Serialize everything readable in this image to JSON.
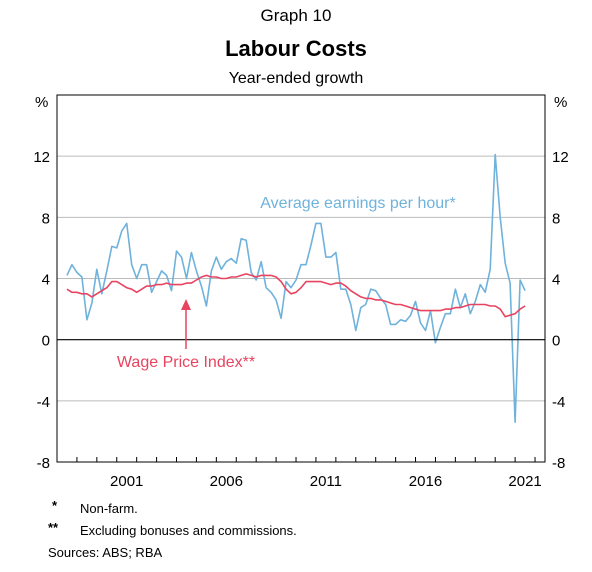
{
  "header": {
    "graph_number": "Graph 10",
    "title": "Labour Costs",
    "subtitle": "Year-ended growth"
  },
  "footnotes": [
    {
      "mark": "*",
      "text": "Non-farm."
    },
    {
      "mark": "**",
      "text": "Excluding bonuses and commissions."
    }
  ],
  "sources": "Sources: ABS; RBA",
  "colors": {
    "average_earnings": "#6FB2DC",
    "wage_price_index": "#E8445F",
    "grid": "#BBBBBB",
    "frame": "#000000"
  },
  "chart_data": {
    "type": "line",
    "title": "Labour Costs",
    "subtitle": "Year-ended growth",
    "y_unit_left": "%",
    "y_unit_right": "%",
    "ylim": [
      -8,
      16
    ],
    "yticks": [
      -8,
      -4,
      0,
      4,
      8,
      12
    ],
    "ytick_labels": [
      "-8",
      "-4",
      "0",
      "4",
      "8",
      "12"
    ],
    "xlim": [
      1998.0,
      2022.5
    ],
    "xticks": [
      2001,
      2006,
      2011,
      2016,
      2021
    ],
    "xtick_labels": [
      "2001",
      "2006",
      "2011",
      "2016",
      "2021"
    ],
    "grid": true,
    "legend": "direct labels",
    "series": [
      {
        "name": "Average earnings per hour*",
        "label_text": "Average earnings per hour*",
        "color": "#6FB2DC",
        "x": [
          1998.5,
          1998.75,
          1999.0,
          1999.25,
          1999.5,
          1999.75,
          2000.0,
          2000.25,
          2000.5,
          2000.75,
          2001.0,
          2001.25,
          2001.5,
          2001.75,
          2002.0,
          2002.25,
          2002.5,
          2002.75,
          2003.0,
          2003.25,
          2003.5,
          2003.75,
          2004.0,
          2004.25,
          2004.5,
          2004.75,
          2005.0,
          2005.25,
          2005.5,
          2005.75,
          2006.0,
          2006.25,
          2006.5,
          2006.75,
          2007.0,
          2007.25,
          2007.5,
          2007.75,
          2008.0,
          2008.25,
          2008.5,
          2008.75,
          2009.0,
          2009.25,
          2009.5,
          2009.75,
          2010.0,
          2010.25,
          2010.5,
          2010.75,
          2011.0,
          2011.25,
          2011.5,
          2011.75,
          2012.0,
          2012.25,
          2012.5,
          2012.75,
          2013.0,
          2013.25,
          2013.5,
          2013.75,
          2014.0,
          2014.25,
          2014.5,
          2014.75,
          2015.0,
          2015.25,
          2015.5,
          2015.75,
          2016.0,
          2016.25,
          2016.5,
          2016.75,
          2017.0,
          2017.25,
          2017.5,
          2017.75,
          2018.0,
          2018.25,
          2018.5,
          2018.75,
          2019.0,
          2019.25,
          2019.5,
          2019.75,
          2020.0,
          2020.25,
          2020.5,
          2020.75,
          2021.0,
          2021.25,
          2021.5
        ],
        "values": [
          4.2,
          4.9,
          4.4,
          4.1,
          1.3,
          2.4,
          4.6,
          3.0,
          4.5,
          6.1,
          6.0,
          7.1,
          7.6,
          4.9,
          4.0,
          4.9,
          4.9,
          3.1,
          3.8,
          4.5,
          4.2,
          3.2,
          5.8,
          5.4,
          4.0,
          5.7,
          4.5,
          3.5,
          2.2,
          4.5,
          5.4,
          4.6,
          5.1,
          5.3,
          5.0,
          6.6,
          6.5,
          4.4,
          3.9,
          5.1,
          3.4,
          3.1,
          2.6,
          1.4,
          3.8,
          3.4,
          3.9,
          4.9,
          4.9,
          6.2,
          7.6,
          7.6,
          5.4,
          5.4,
          5.7,
          3.3,
          3.3,
          2.3,
          0.6,
          2.1,
          2.3,
          3.3,
          3.2,
          2.7,
          2.3,
          1.0,
          1.0,
          1.3,
          1.2,
          1.6,
          2.5,
          1.1,
          0.6,
          1.9,
          -0.2,
          0.8,
          1.7,
          1.7,
          3.3,
          2.1,
          3.0,
          1.7,
          2.5,
          3.6,
          3.1,
          4.6,
          12.1,
          8.0,
          5.0,
          3.7,
          -5.4,
          3.9,
          3.2
        ]
      },
      {
        "name": "Wage Price Index**",
        "label_text": "Wage Price Index**",
        "color": "#E8445F",
        "x": [
          1998.5,
          1998.75,
          1999.0,
          1999.25,
          1999.5,
          1999.75,
          2000.0,
          2000.25,
          2000.5,
          2000.75,
          2001.0,
          2001.25,
          2001.5,
          2001.75,
          2002.0,
          2002.25,
          2002.5,
          2002.75,
          2003.0,
          2003.25,
          2003.5,
          2003.75,
          2004.0,
          2004.25,
          2004.5,
          2004.75,
          2005.0,
          2005.25,
          2005.5,
          2005.75,
          2006.0,
          2006.25,
          2006.5,
          2006.75,
          2007.0,
          2007.25,
          2007.5,
          2007.75,
          2008.0,
          2008.25,
          2008.5,
          2008.75,
          2009.0,
          2009.25,
          2009.5,
          2009.75,
          2010.0,
          2010.25,
          2010.5,
          2010.75,
          2011.0,
          2011.25,
          2011.5,
          2011.75,
          2012.0,
          2012.25,
          2012.5,
          2012.75,
          2013.0,
          2013.25,
          2013.5,
          2013.75,
          2014.0,
          2014.25,
          2014.5,
          2014.75,
          2015.0,
          2015.25,
          2015.5,
          2015.75,
          2016.0,
          2016.25,
          2016.5,
          2016.75,
          2017.0,
          2017.25,
          2017.5,
          2017.75,
          2018.0,
          2018.25,
          2018.5,
          2018.75,
          2019.0,
          2019.25,
          2019.5,
          2019.75,
          2020.0,
          2020.25,
          2020.5,
          2020.75,
          2021.0,
          2021.25,
          2021.5
        ],
        "values": [
          3.3,
          3.1,
          3.1,
          3.0,
          3.0,
          2.8,
          3.0,
          3.2,
          3.4,
          3.8,
          3.8,
          3.6,
          3.4,
          3.3,
          3.1,
          3.3,
          3.5,
          3.5,
          3.6,
          3.6,
          3.7,
          3.6,
          3.6,
          3.6,
          3.7,
          3.7,
          3.9,
          4.1,
          4.2,
          4.1,
          4.1,
          4.0,
          4.0,
          4.1,
          4.1,
          4.2,
          4.3,
          4.2,
          4.1,
          4.2,
          4.2,
          4.2,
          4.1,
          3.8,
          3.3,
          3.0,
          3.1,
          3.4,
          3.8,
          3.8,
          3.8,
          3.8,
          3.7,
          3.6,
          3.7,
          3.7,
          3.5,
          3.2,
          3.0,
          2.8,
          2.7,
          2.7,
          2.6,
          2.6,
          2.5,
          2.4,
          2.3,
          2.3,
          2.2,
          2.1,
          2.0,
          1.9,
          1.9,
          1.9,
          1.9,
          1.9,
          2.0,
          2.0,
          2.1,
          2.1,
          2.2,
          2.3,
          2.3,
          2.3,
          2.3,
          2.2,
          2.2,
          2.0,
          1.5,
          1.6,
          1.7,
          2.0,
          2.2
        ]
      }
    ],
    "annotations": [
      {
        "text": "Average earnings per hour*",
        "series": "Average earnings per hour*"
      },
      {
        "text": "Wage Price Index**",
        "series": "Wage Price Index**"
      }
    ]
  }
}
